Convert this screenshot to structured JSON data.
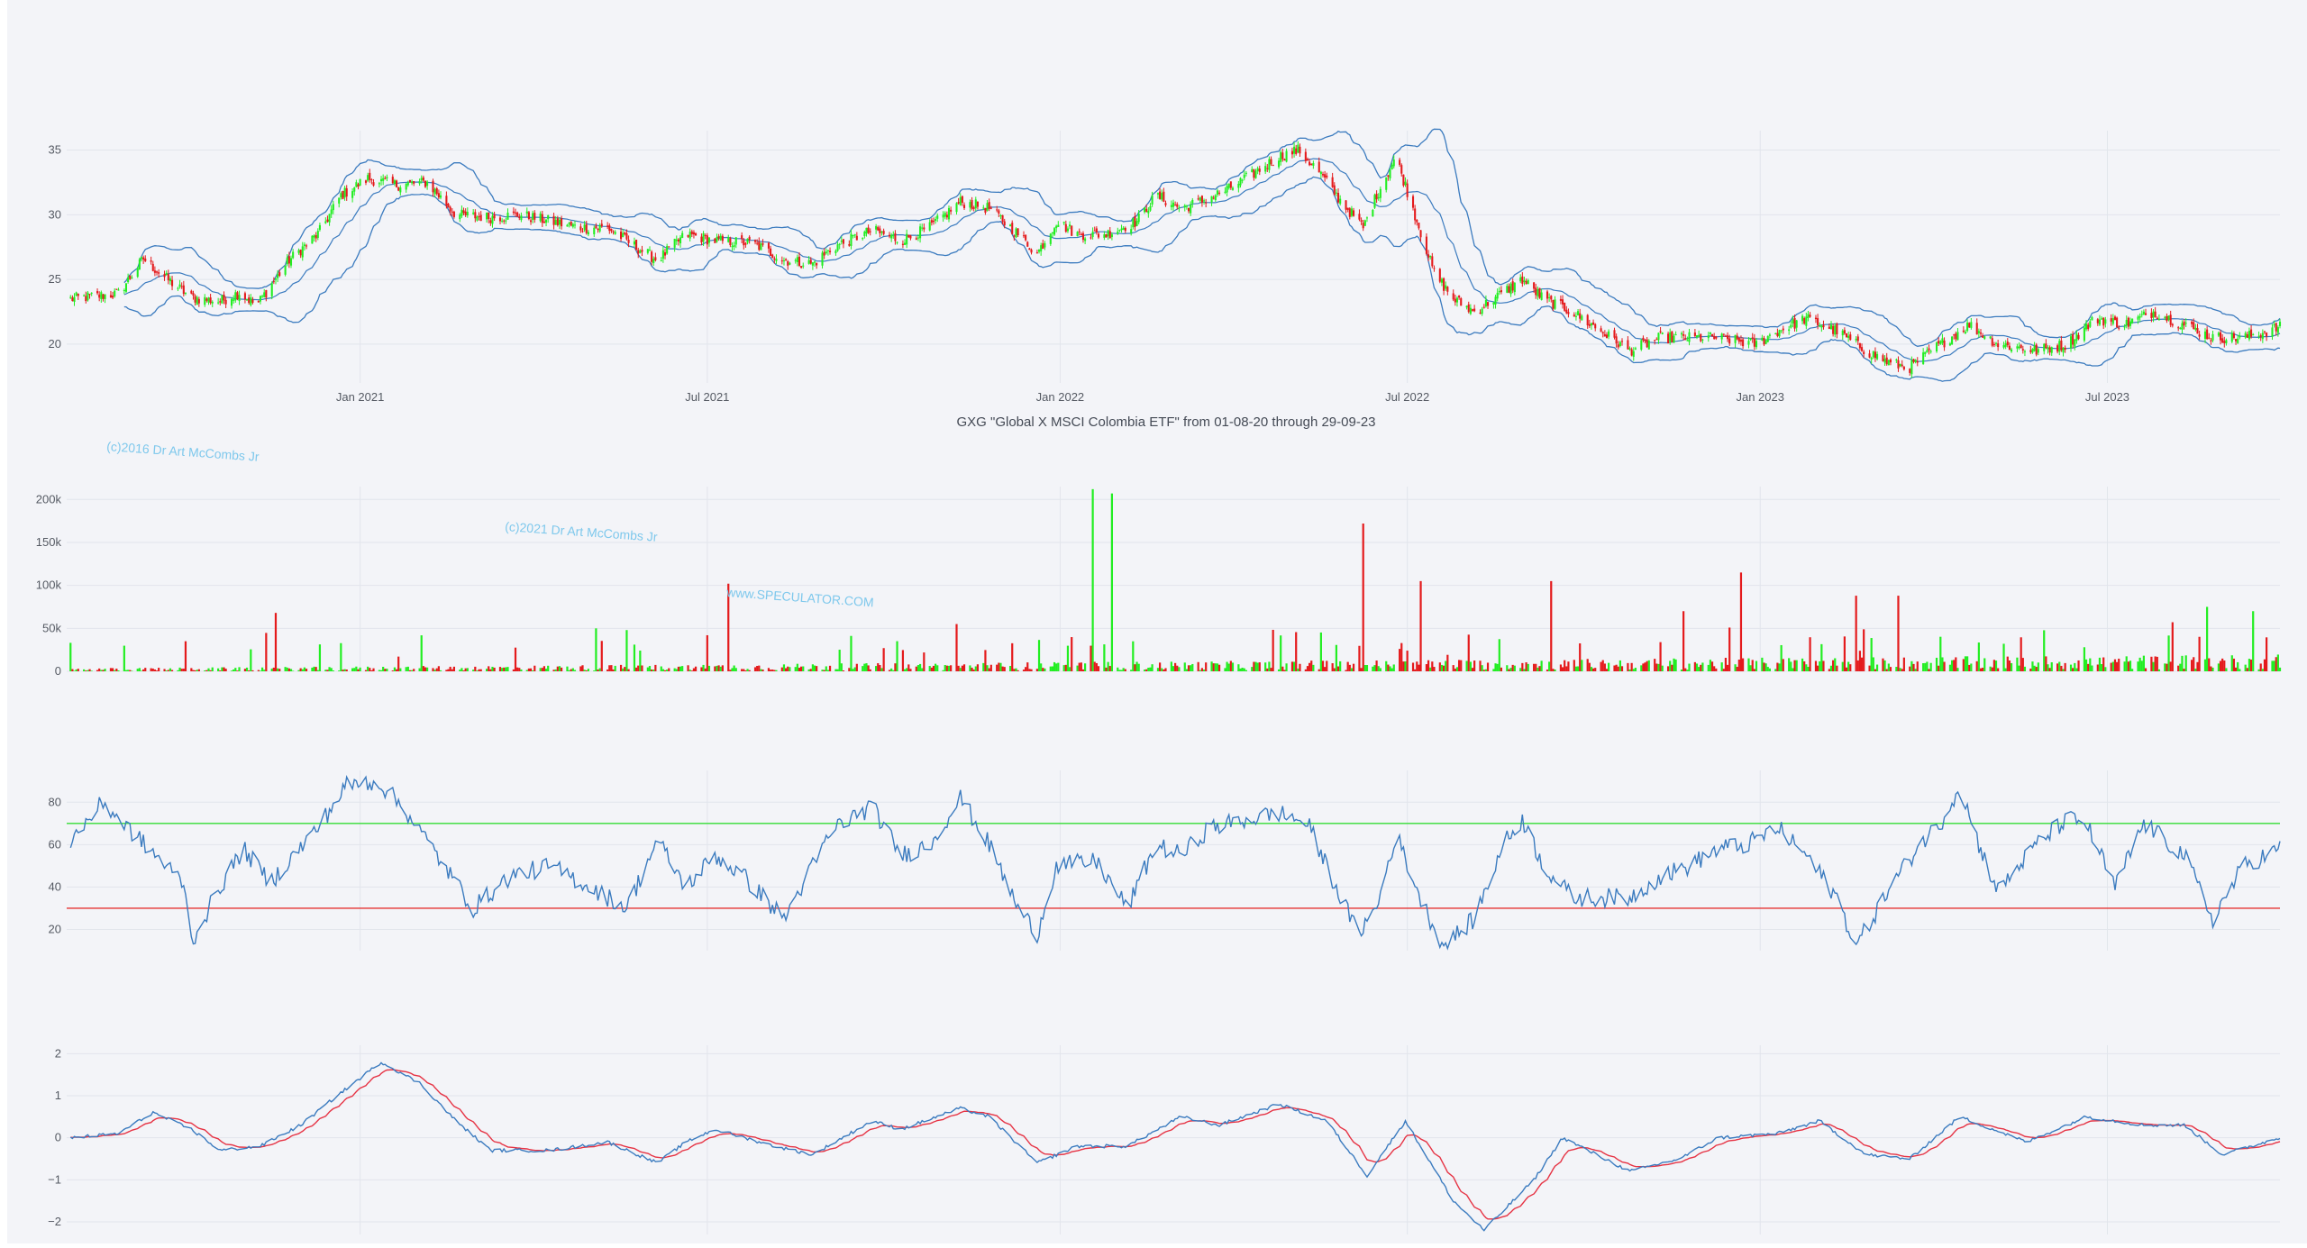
{
  "title": "GXG \"Global X MSCI Colombia ETF\" from 01-08-20 through 29-09-23",
  "watermarks": [
    "(c)2016 Dr Art McCombs Jr",
    "(c)2021 Dr Art McCombs Jr",
    "www.SPECULATOR.COM"
  ],
  "colors": {
    "up": "#22ee22",
    "down": "#e41a1c",
    "band": "#3b7bbf",
    "rsi_line": "#3b7bbf",
    "rsi_upper": "#33dd33",
    "rsi_lower": "#e63333",
    "macd": "#3b7bbf",
    "signal": "#e63344",
    "grid": "#e2e5ec"
  },
  "x_axis": {
    "range": [
      "2020-08-01",
      "2023-09-29"
    ],
    "ticks": [
      {
        "date": "2021-01-01",
        "label": "Jan 2021"
      },
      {
        "date": "2021-07-01",
        "label": "Jul 2021"
      },
      {
        "date": "2022-01-01",
        "label": "Jan 2022"
      },
      {
        "date": "2022-07-01",
        "label": "Jul 2022"
      },
      {
        "date": "2023-01-01",
        "label": "Jan 2023"
      },
      {
        "date": "2023-07-01",
        "label": "Jul 2023"
      }
    ]
  },
  "chart_data": [
    {
      "type": "candlestick",
      "panel": "price",
      "ylim": [
        17,
        36.5
      ],
      "yticks": [
        20,
        25,
        30,
        35
      ],
      "indicator": "Bollinger Bands",
      "close_anchors": [
        [
          "2020-08-03",
          23.5
        ],
        [
          "2020-08-28",
          23.9
        ],
        [
          "2020-09-10",
          26.6
        ],
        [
          "2020-09-20",
          25.3
        ],
        [
          "2020-10-05",
          23.6
        ],
        [
          "2020-10-20",
          23.3
        ],
        [
          "2020-10-30",
          24.0
        ],
        [
          "2020-11-08",
          23.0
        ],
        [
          "2020-11-25",
          26.5
        ],
        [
          "2020-12-10",
          28.5
        ],
        [
          "2020-12-22",
          31.5
        ],
        [
          "2021-01-05",
          32.8
        ],
        [
          "2021-01-20",
          32.3
        ],
        [
          "2021-02-05",
          32.5
        ],
        [
          "2021-02-20",
          30.0
        ],
        [
          "2021-03-10",
          29.8
        ],
        [
          "2021-03-25",
          30.0
        ],
        [
          "2021-04-10",
          29.5
        ],
        [
          "2021-04-25",
          29.0
        ],
        [
          "2021-05-10",
          29.0
        ],
        [
          "2021-05-25",
          27.5
        ],
        [
          "2021-06-05",
          26.5
        ],
        [
          "2021-06-20",
          28.5
        ],
        [
          "2021-07-05",
          28.0
        ],
        [
          "2021-07-25",
          27.8
        ],
        [
          "2021-08-10",
          26.5
        ],
        [
          "2021-08-25",
          26.2
        ],
        [
          "2021-09-05",
          27.5
        ],
        [
          "2021-09-25",
          28.8
        ],
        [
          "2021-10-10",
          28.0
        ],
        [
          "2021-10-25",
          29.0
        ],
        [
          "2021-11-10",
          31.0
        ],
        [
          "2021-11-25",
          30.5
        ],
        [
          "2021-12-10",
          28.5
        ],
        [
          "2021-12-20",
          27.0
        ],
        [
          "2021-12-30",
          29.5
        ],
        [
          "2022-01-10",
          28.5
        ],
        [
          "2022-01-25",
          28.5
        ],
        [
          "2022-02-10",
          29.5
        ],
        [
          "2022-02-20",
          31.5
        ],
        [
          "2022-03-05",
          30.5
        ],
        [
          "2022-03-15",
          31.0
        ],
        [
          "2022-03-30",
          32.0
        ],
        [
          "2022-04-10",
          33.0
        ],
        [
          "2022-04-25",
          34.5
        ],
        [
          "2022-05-05",
          35.0
        ],
        [
          "2022-05-15",
          33.5
        ],
        [
          "2022-05-25",
          31.5
        ],
        [
          "2022-06-08",
          29.0
        ],
        [
          "2022-06-15",
          31.5
        ],
        [
          "2022-06-25",
          34.5
        ],
        [
          "2022-07-05",
          30.0
        ],
        [
          "2022-07-15",
          25.5
        ],
        [
          "2022-07-25",
          23.5
        ],
        [
          "2022-08-05",
          22.5
        ],
        [
          "2022-08-20",
          24.0
        ],
        [
          "2022-08-30",
          25.0
        ],
        [
          "2022-09-10",
          23.5
        ],
        [
          "2022-09-25",
          22.5
        ],
        [
          "2022-10-10",
          21.0
        ],
        [
          "2022-10-25",
          19.5
        ],
        [
          "2022-11-10",
          20.5
        ],
        [
          "2022-11-25",
          20.5
        ],
        [
          "2022-12-10",
          20.5
        ],
        [
          "2022-12-30",
          20.0
        ],
        [
          "2023-01-10",
          21.0
        ],
        [
          "2023-01-25",
          22.0
        ],
        [
          "2023-02-10",
          21.0
        ],
        [
          "2023-02-25",
          19.5
        ],
        [
          "2023-03-10",
          18.5
        ],
        [
          "2023-03-20",
          18.2
        ],
        [
          "2023-04-05",
          20.0
        ],
        [
          "2023-04-20",
          21.5
        ],
        [
          "2023-05-05",
          20.0
        ],
        [
          "2023-05-25",
          19.5
        ],
        [
          "2023-06-10",
          20.0
        ],
        [
          "2023-06-25",
          22.0
        ],
        [
          "2023-07-10",
          21.5
        ],
        [
          "2023-07-25",
          22.5
        ],
        [
          "2023-08-10",
          21.5
        ],
        [
          "2023-08-25",
          20.5
        ],
        [
          "2023-09-10",
          20.5
        ],
        [
          "2023-09-29",
          21.3
        ]
      ]
    },
    {
      "type": "bar",
      "panel": "volume",
      "ylim": [
        0,
        215000
      ],
      "yticks": [
        0,
        50000,
        100000,
        150000,
        200000
      ],
      "yticklabels": [
        "0",
        "50k",
        "100k",
        "150k",
        "200k"
      ],
      "spikes": [
        [
          "2020-10-02",
          35000,
          "down"
        ],
        [
          "2020-11-18",
          68000,
          "down"
        ],
        [
          "2021-04-10",
          55000,
          "down"
        ],
        [
          "2021-05-04",
          50000,
          "green"
        ],
        [
          "2021-05-20",
          48000,
          "green"
        ],
        [
          "2021-07-12",
          102000,
          "down"
        ],
        [
          "2021-11-08",
          55000,
          "down"
        ],
        [
          "2022-01-18",
          212000,
          "green"
        ],
        [
          "2022-01-28",
          207000,
          "green"
        ],
        [
          "2022-06-08",
          172000,
          "down"
        ],
        [
          "2022-07-08",
          105000,
          "down"
        ],
        [
          "2022-09-14",
          105000,
          "down"
        ],
        [
          "2022-11-22",
          70000,
          "down"
        ],
        [
          "2022-12-22",
          115000,
          "down"
        ],
        [
          "2023-01-08",
          92000,
          "green"
        ],
        [
          "2023-02-20",
          88000,
          "down"
        ],
        [
          "2023-03-14",
          88000,
          "down"
        ],
        [
          "2023-06-18",
          62000,
          "green"
        ],
        [
          "2023-08-22",
          75000,
          "green"
        ],
        [
          "2023-09-15",
          70000,
          "green"
        ]
      ]
    },
    {
      "type": "line",
      "panel": "rsi",
      "ylim": [
        10,
        95
      ],
      "yticks": [
        20,
        40,
        60,
        80
      ],
      "levels": [
        70,
        30
      ],
      "anchors": [
        [
          "2020-08-03",
          62
        ],
        [
          "2020-08-20",
          80
        ],
        [
          "2020-09-05",
          65
        ],
        [
          "2020-10-01",
          42
        ],
        [
          "2020-10-05",
          14
        ],
        [
          "2020-10-20",
          40
        ],
        [
          "2020-11-01",
          58
        ],
        [
          "2020-11-15",
          42
        ],
        [
          "2020-12-10",
          68
        ],
        [
          "2020-12-25",
          88
        ],
        [
          "2021-01-10",
          90
        ],
        [
          "2021-01-25",
          76
        ],
        [
          "2021-02-10",
          55
        ],
        [
          "2021-03-01",
          30
        ],
        [
          "2021-03-20",
          45
        ],
        [
          "2021-04-10",
          50
        ],
        [
          "2021-05-01",
          40
        ],
        [
          "2021-05-20",
          30
        ],
        [
          "2021-06-05",
          62
        ],
        [
          "2021-06-20",
          40
        ],
        [
          "2021-07-05",
          55
        ],
        [
          "2021-07-20",
          45
        ],
        [
          "2021-08-10",
          25
        ],
        [
          "2021-09-05",
          68
        ],
        [
          "2021-09-25",
          78
        ],
        [
          "2021-10-10",
          55
        ],
        [
          "2021-10-25",
          60
        ],
        [
          "2021-11-10",
          82
        ],
        [
          "2021-11-25",
          60
        ],
        [
          "2021-12-10",
          30
        ],
        [
          "2021-12-20",
          18
        ],
        [
          "2021-12-30",
          50
        ],
        [
          "2022-01-20",
          52
        ],
        [
          "2022-02-05",
          30
        ],
        [
          "2022-02-20",
          60
        ],
        [
          "2022-03-05",
          55
        ],
        [
          "2022-03-20",
          68
        ],
        [
          "2022-04-10",
          72
        ],
        [
          "2022-04-25",
          75
        ],
        [
          "2022-05-10",
          70
        ],
        [
          "2022-05-20",
          50
        ],
        [
          "2022-06-05",
          18
        ],
        [
          "2022-06-15",
          30
        ],
        [
          "2022-06-25",
          65
        ],
        [
          "2022-07-10",
          30
        ],
        [
          "2022-07-20",
          12
        ],
        [
          "2022-08-05",
          25
        ],
        [
          "2022-08-20",
          60
        ],
        [
          "2022-08-30",
          72
        ],
        [
          "2022-09-10",
          50
        ],
        [
          "2022-09-25",
          35
        ],
        [
          "2022-10-25",
          35
        ],
        [
          "2022-11-10",
          45
        ],
        [
          "2022-11-25",
          50
        ],
        [
          "2022-12-10",
          58
        ],
        [
          "2022-12-25",
          60
        ],
        [
          "2023-01-10",
          68
        ],
        [
          "2023-01-25",
          55
        ],
        [
          "2023-02-10",
          35
        ],
        [
          "2023-02-20",
          12
        ],
        [
          "2023-03-10",
          40
        ],
        [
          "2023-03-25",
          60
        ],
        [
          "2023-04-05",
          70
        ],
        [
          "2023-04-15",
          88
        ],
        [
          "2023-04-25",
          60
        ],
        [
          "2023-05-05",
          38
        ],
        [
          "2023-05-25",
          60
        ],
        [
          "2023-06-10",
          72
        ],
        [
          "2023-06-20",
          70
        ],
        [
          "2023-07-05",
          40
        ],
        [
          "2023-07-20",
          70
        ],
        [
          "2023-08-10",
          55
        ],
        [
          "2023-08-25",
          25
        ],
        [
          "2023-09-10",
          50
        ],
        [
          "2023-09-29",
          58
        ]
      ]
    },
    {
      "type": "line",
      "panel": "macd",
      "ylim": [
        -2.3,
        2.2
      ],
      "yticks": [
        -2,
        -1,
        0,
        1,
        2
      ],
      "yticklabels": [
        "−2",
        "−1",
        "0",
        "1",
        "2"
      ],
      "series": [
        {
          "role": "macd",
          "anchors": [
            [
              "2020-08-03",
              0
            ],
            [
              "2020-08-28",
              0.1
            ],
            [
              "2020-09-15",
              0.6
            ],
            [
              "2020-10-05",
              0.2
            ],
            [
              "2020-10-20",
              -0.3
            ],
            [
              "2020-11-10",
              -0.2
            ],
            [
              "2020-12-01",
              0.3
            ],
            [
              "2020-12-20",
              1.0
            ],
            [
              "2021-01-12",
              1.8
            ],
            [
              "2021-02-01",
              1.3
            ],
            [
              "2021-02-20",
              0.4
            ],
            [
              "2021-03-10",
              -0.3
            ],
            [
              "2021-04-10",
              -0.3
            ],
            [
              "2021-05-10",
              -0.1
            ],
            [
              "2021-06-05",
              -0.6
            ],
            [
              "2021-06-20",
              -0.1
            ],
            [
              "2021-07-05",
              0.2
            ],
            [
              "2021-08-05",
              -0.2
            ],
            [
              "2021-08-25",
              -0.4
            ],
            [
              "2021-09-25",
              0.4
            ],
            [
              "2021-10-10",
              0.2
            ],
            [
              "2021-11-10",
              0.7
            ],
            [
              "2021-11-25",
              0.5
            ],
            [
              "2021-12-20",
              -0.6
            ],
            [
              "2022-01-10",
              -0.2
            ],
            [
              "2022-02-05",
              -0.2
            ],
            [
              "2022-03-05",
              0.5
            ],
            [
              "2022-03-25",
              0.3
            ],
            [
              "2022-04-25",
              0.8
            ],
            [
              "2022-05-20",
              0.4
            ],
            [
              "2022-06-10",
              -0.9
            ],
            [
              "2022-06-30",
              0.4
            ],
            [
              "2022-07-25",
              -1.5
            ],
            [
              "2022-08-10",
              -2.2
            ],
            [
              "2022-09-05",
              -1.0
            ],
            [
              "2022-09-20",
              0
            ],
            [
              "2022-10-25",
              -0.8
            ],
            [
              "2022-11-20",
              -0.5
            ],
            [
              "2022-12-10",
              0
            ],
            [
              "2023-01-10",
              0.1
            ],
            [
              "2023-02-01",
              0.4
            ],
            [
              "2023-02-25",
              -0.4
            ],
            [
              "2023-03-20",
              -0.5
            ],
            [
              "2023-04-15",
              0.5
            ],
            [
              "2023-05-20",
              -0.1
            ],
            [
              "2023-06-20",
              0.5
            ],
            [
              "2023-07-20",
              0.3
            ],
            [
              "2023-08-10",
              0.3
            ],
            [
              "2023-08-30",
              -0.4
            ],
            [
              "2023-09-29",
              0
            ]
          ]
        },
        {
          "role": "signal",
          "lag_days": 8,
          "smoothing": 0.55
        }
      ]
    }
  ]
}
